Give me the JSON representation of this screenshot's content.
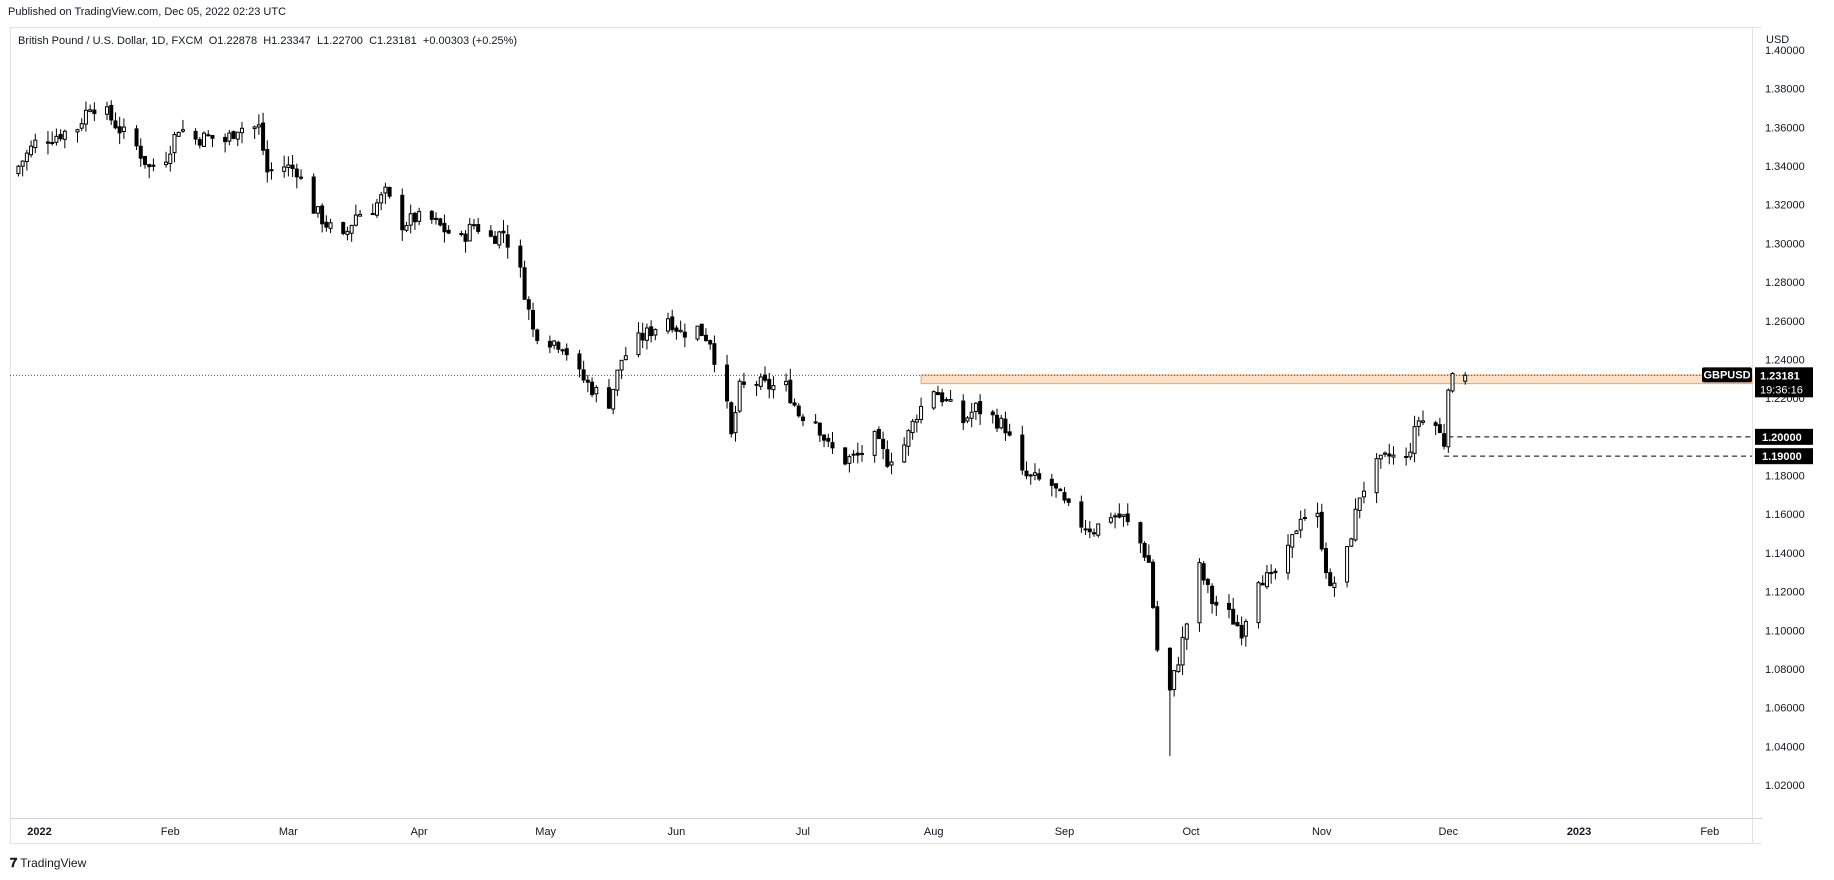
{
  "header": {
    "published": "Published on TradingView.com, Dec 05, 2022 02:23 UTC"
  },
  "legend": {
    "symbol": "British Pound / U.S. Dollar, 1D, FXCM",
    "open": "O1.22878",
    "high": "H1.23347",
    "low": "L1.22700",
    "close": "C1.23181",
    "change": "+0.00303 (+0.25%)"
  },
  "price_axis": {
    "currency": "USD"
  },
  "footer": {
    "brand": "TradingView"
  },
  "colors": {
    "candle_up": "#ffffff",
    "candle_down": "#000000",
    "candle_border": "#000000",
    "zone": "#f9c89b",
    "tag_bg": "#000000"
  },
  "chart_data": {
    "type": "candlestick",
    "title": "British Pound / U.S. Dollar, 1D, FXCM",
    "ylim": [
      1.0,
      1.41
    ],
    "y_ticks": [
      "1.40000",
      "1.38000",
      "1.36000",
      "1.34000",
      "1.32000",
      "1.30000",
      "1.28000",
      "1.26000",
      "1.24000",
      "1.22000",
      "1.20000",
      "1.18000",
      "1.16000",
      "1.14000",
      "1.12000",
      "1.10000",
      "1.08000",
      "1.06000",
      "1.04000",
      "1.02000"
    ],
    "x_ticks": [
      {
        "label": "2022",
        "date": "2022-01-01"
      },
      {
        "label": "Feb",
        "date": "2022-02-01"
      },
      {
        "label": "Mar",
        "date": "2022-03-01"
      },
      {
        "label": "Apr",
        "date": "2022-04-01"
      },
      {
        "label": "May",
        "date": "2022-05-01"
      },
      {
        "label": "Jun",
        "date": "2022-06-01"
      },
      {
        "label": "Jul",
        "date": "2022-07-01"
      },
      {
        "label": "Aug",
        "date": "2022-08-01"
      },
      {
        "label": "Sep",
        "date": "2022-09-01"
      },
      {
        "label": "Oct",
        "date": "2022-10-01"
      },
      {
        "label": "Nov",
        "date": "2022-11-01"
      },
      {
        "label": "Dec",
        "date": "2022-12-01"
      },
      {
        "label": "2023",
        "date": "2023-01-01"
      },
      {
        "label": "Feb",
        "date": "2023-02-01"
      }
    ],
    "x_range": [
      "2021-12-25",
      "2023-02-11"
    ],
    "close_path": [
      [
        "2021-12-27",
        1.34
      ],
      [
        "2021-12-31",
        1.352
      ],
      [
        "2022-01-05",
        1.356
      ],
      [
        "2022-01-10",
        1.36
      ],
      [
        "2022-01-13",
        1.372
      ],
      [
        "2022-01-17",
        1.367
      ],
      [
        "2022-01-20",
        1.359
      ],
      [
        "2022-01-24",
        1.35
      ],
      [
        "2022-01-27",
        1.339
      ],
      [
        "2022-01-31",
        1.345
      ],
      [
        "2022-02-03",
        1.36
      ],
      [
        "2022-02-07",
        1.354
      ],
      [
        "2022-02-10",
        1.355
      ],
      [
        "2022-02-14",
        1.353
      ],
      [
        "2022-02-17",
        1.36
      ],
      [
        "2022-02-22",
        1.36
      ],
      [
        "2022-02-24",
        1.337
      ],
      [
        "2022-02-28",
        1.34
      ],
      [
        "2022-03-03",
        1.338
      ],
      [
        "2022-03-07",
        1.318
      ],
      [
        "2022-03-10",
        1.31
      ],
      [
        "2022-03-14",
        1.302
      ],
      [
        "2022-03-17",
        1.315
      ],
      [
        "2022-03-21",
        1.318
      ],
      [
        "2022-03-24",
        1.326
      ],
      [
        "2022-03-28",
        1.31
      ],
      [
        "2022-03-31",
        1.313
      ],
      [
        "2022-04-04",
        1.312
      ],
      [
        "2022-04-07",
        1.307
      ],
      [
        "2022-04-11",
        1.302
      ],
      [
        "2022-04-14",
        1.31
      ],
      [
        "2022-04-18",
        1.303
      ],
      [
        "2022-04-21",
        1.306
      ],
      [
        "2022-04-25",
        1.285
      ],
      [
        "2022-04-28",
        1.255
      ],
      [
        "2022-05-02",
        1.25
      ],
      [
        "2022-05-05",
        1.248
      ],
      [
        "2022-05-09",
        1.232
      ],
      [
        "2022-05-12",
        1.225
      ],
      [
        "2022-05-16",
        1.218
      ],
      [
        "2022-05-19",
        1.24
      ],
      [
        "2022-05-23",
        1.25
      ],
      [
        "2022-05-26",
        1.255
      ],
      [
        "2022-05-30",
        1.262
      ],
      [
        "2022-06-02",
        1.254
      ],
      [
        "2022-06-06",
        1.256
      ],
      [
        "2022-06-09",
        1.25
      ],
      [
        "2022-06-13",
        1.215
      ],
      [
        "2022-06-14",
        1.2
      ],
      [
        "2022-06-16",
        1.225
      ],
      [
        "2022-06-20",
        1.228
      ],
      [
        "2022-06-23",
        1.226
      ],
      [
        "2022-06-27",
        1.226
      ],
      [
        "2022-06-30",
        1.212
      ],
      [
        "2022-07-04",
        1.209
      ],
      [
        "2022-07-07",
        1.195
      ],
      [
        "2022-07-11",
        1.188
      ],
      [
        "2022-07-14",
        1.19
      ],
      [
        "2022-07-18",
        1.199
      ],
      [
        "2022-07-21",
        1.188
      ],
      [
        "2022-07-25",
        1.196
      ],
      [
        "2022-07-28",
        1.212
      ],
      [
        "2022-08-01",
        1.225
      ],
      [
        "2022-08-04",
        1.218
      ],
      [
        "2022-08-08",
        1.208
      ],
      [
        "2022-08-11",
        1.215
      ],
      [
        "2022-08-15",
        1.21
      ],
      [
        "2022-08-18",
        1.205
      ],
      [
        "2022-08-22",
        1.18
      ],
      [
        "2022-08-25",
        1.178
      ],
      [
        "2022-08-29",
        1.175
      ],
      [
        "2022-09-01",
        1.165
      ],
      [
        "2022-09-05",
        1.155
      ],
      [
        "2022-09-08",
        1.152
      ],
      [
        "2022-09-12",
        1.16
      ],
      [
        "2022-09-15",
        1.158
      ],
      [
        "2022-09-19",
        1.145
      ],
      [
        "2022-09-21",
        1.135
      ],
      [
        "2022-09-23",
        1.09
      ],
      [
        "2022-09-26",
        1.068
      ],
      [
        "2022-09-28",
        1.085
      ],
      [
        "2022-10-03",
        1.132
      ],
      [
        "2022-10-06",
        1.115
      ],
      [
        "2022-10-10",
        1.108
      ],
      [
        "2022-10-13",
        1.1
      ],
      [
        "2022-10-17",
        1.128
      ],
      [
        "2022-10-20",
        1.126
      ],
      [
        "2022-10-24",
        1.14
      ],
      [
        "2022-10-27",
        1.16
      ],
      [
        "2022-10-31",
        1.158
      ],
      [
        "2022-11-03",
        1.12
      ],
      [
        "2022-11-07",
        1.14
      ],
      [
        "2022-11-10",
        1.17
      ],
      [
        "2022-11-14",
        1.185
      ],
      [
        "2022-11-17",
        1.19
      ],
      [
        "2022-11-21",
        1.188
      ],
      [
        "2022-11-24",
        1.209
      ],
      [
        "2022-11-28",
        1.206
      ],
      [
        "2022-11-30",
        1.197
      ],
      [
        "2022-12-01",
        1.228
      ],
      [
        "2022-12-02",
        1.229
      ],
      [
        "2022-12-05",
        1.23181
      ]
    ],
    "resistance_zone": {
      "from_date": "2022-07-29",
      "to_date": "2023-02-11",
      "low": 1.2275,
      "high": 1.232
    },
    "current_price": {
      "symbol": "GBPUSD",
      "value": "1.23181",
      "countdown": "19:36:16",
      "y": 1.23181
    },
    "levels": [
      {
        "label": "1.20000",
        "y": 1.2,
        "from_date": "2022-12-01"
      },
      {
        "label": "1.19000",
        "y": 1.19,
        "from_date": "2022-11-30"
      }
    ]
  }
}
